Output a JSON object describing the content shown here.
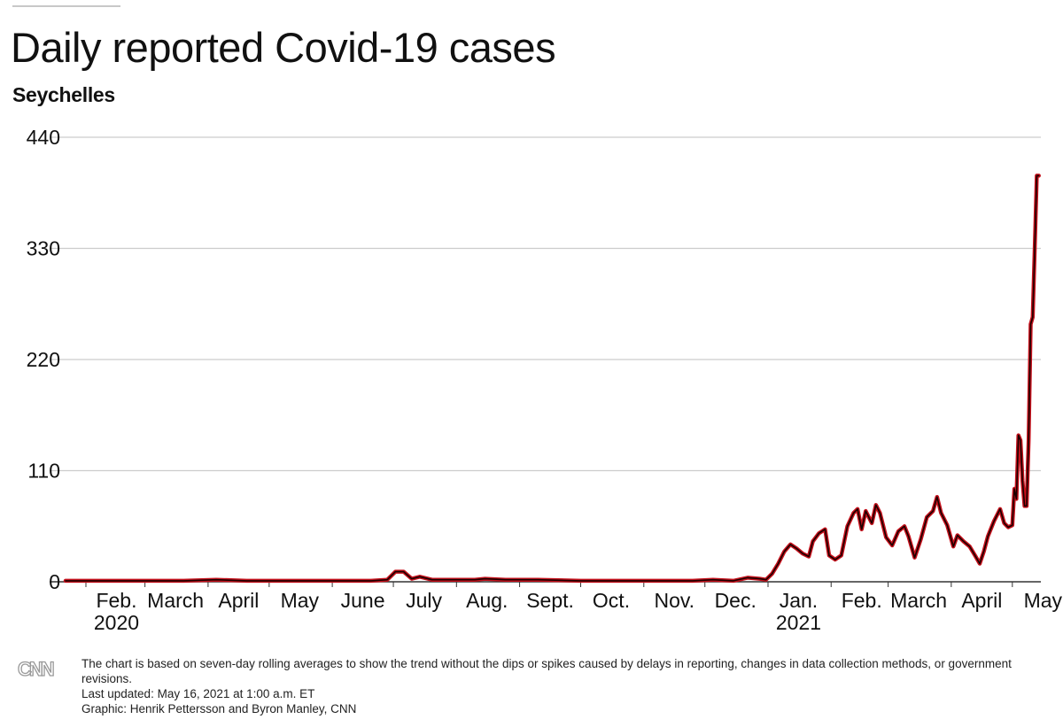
{
  "title": "Daily reported Covid-19 cases",
  "subtitle": "Seychelles",
  "footer": {
    "note": "The chart is based on seven-day rolling averages to show the trend without the dips or spikes caused by delays in reporting, changes in data collection methods, or government revisions.",
    "updated": "Last updated: May 16, 2021 at 1:00 a.m. ET",
    "credit": "Graphic: Henrik Pettersson and Byron Manley, CNN",
    "logo": "CNN"
  },
  "colors": {
    "line": "#c4101b",
    "line_core": "#1a0000",
    "grid": "#cccccc",
    "axis": "#333333"
  },
  "chart_data": {
    "type": "line",
    "title": "Daily reported Covid-19 cases",
    "subtitle": "Seychelles",
    "xlabel": "",
    "ylabel": "",
    "x_range": [
      "2020-01-22",
      "2021-05-15"
    ],
    "ylim": [
      0,
      440
    ],
    "yticks": [
      0,
      110,
      220,
      330,
      440
    ],
    "grid": true,
    "x_ticks": [
      {
        "date": "2020-02-01",
        "label": "Feb.",
        "sub": "2020"
      },
      {
        "date": "2020-03-01",
        "label": "March",
        "sub": ""
      },
      {
        "date": "2020-04-01",
        "label": "April",
        "sub": ""
      },
      {
        "date": "2020-05-01",
        "label": "May",
        "sub": ""
      },
      {
        "date": "2020-06-01",
        "label": "June",
        "sub": ""
      },
      {
        "date": "2020-07-01",
        "label": "July",
        "sub": ""
      },
      {
        "date": "2020-08-01",
        "label": "Aug.",
        "sub": ""
      },
      {
        "date": "2020-09-01",
        "label": "Sept.",
        "sub": ""
      },
      {
        "date": "2020-10-01",
        "label": "Oct.",
        "sub": ""
      },
      {
        "date": "2020-11-01",
        "label": "Nov.",
        "sub": ""
      },
      {
        "date": "2020-12-01",
        "label": "Dec.",
        "sub": ""
      },
      {
        "date": "2021-01-01",
        "label": "Jan.",
        "sub": "2021"
      },
      {
        "date": "2021-02-01",
        "label": "Feb.",
        "sub": ""
      },
      {
        "date": "2021-03-01",
        "label": "March",
        "sub": ""
      },
      {
        "date": "2021-04-01",
        "label": "April",
        "sub": ""
      },
      {
        "date": "2021-05-01",
        "label": "May",
        "sub": ""
      }
    ],
    "series": [
      {
        "points": [
          [
            "2020-01-22",
            1
          ],
          [
            "2020-03-20",
            1
          ],
          [
            "2020-04-05",
            2
          ],
          [
            "2020-04-20",
            1
          ],
          [
            "2020-06-20",
            1
          ],
          [
            "2020-06-28",
            2
          ],
          [
            "2020-07-02",
            10
          ],
          [
            "2020-07-06",
            10
          ],
          [
            "2020-07-10",
            3
          ],
          [
            "2020-07-14",
            5
          ],
          [
            "2020-07-20",
            2
          ],
          [
            "2020-08-10",
            2
          ],
          [
            "2020-08-15",
            3
          ],
          [
            "2020-08-25",
            2
          ],
          [
            "2020-09-10",
            2
          ],
          [
            "2020-10-01",
            1
          ],
          [
            "2020-11-01",
            1
          ],
          [
            "2020-11-25",
            1
          ],
          [
            "2020-12-05",
            2
          ],
          [
            "2020-12-15",
            1
          ],
          [
            "2020-12-22",
            4
          ],
          [
            "2020-12-28",
            3
          ],
          [
            "2020-12-31",
            2
          ],
          [
            "2021-01-03",
            8
          ],
          [
            "2021-01-06",
            18
          ],
          [
            "2021-01-09",
            30
          ],
          [
            "2021-01-12",
            37
          ],
          [
            "2021-01-15",
            33
          ],
          [
            "2021-01-18",
            28
          ],
          [
            "2021-01-21",
            25
          ],
          [
            "2021-01-23",
            40
          ],
          [
            "2021-01-26",
            48
          ],
          [
            "2021-01-29",
            52
          ],
          [
            "2021-01-31",
            26
          ],
          [
            "2021-02-03",
            22
          ],
          [
            "2021-02-06",
            26
          ],
          [
            "2021-02-09",
            55
          ],
          [
            "2021-02-12",
            68
          ],
          [
            "2021-02-14",
            72
          ],
          [
            "2021-02-16",
            52
          ],
          [
            "2021-02-18",
            70
          ],
          [
            "2021-02-21",
            58
          ],
          [
            "2021-02-23",
            76
          ],
          [
            "2021-02-25",
            68
          ],
          [
            "2021-02-28",
            44
          ],
          [
            "2021-03-03",
            36
          ],
          [
            "2021-03-06",
            50
          ],
          [
            "2021-03-09",
            55
          ],
          [
            "2021-03-11",
            45
          ],
          [
            "2021-03-14",
            24
          ],
          [
            "2021-03-17",
            42
          ],
          [
            "2021-03-20",
            64
          ],
          [
            "2021-03-23",
            70
          ],
          [
            "2021-03-25",
            84
          ],
          [
            "2021-03-27",
            68
          ],
          [
            "2021-03-30",
            56
          ],
          [
            "2021-04-02",
            35
          ],
          [
            "2021-04-04",
            46
          ],
          [
            "2021-04-07",
            40
          ],
          [
            "2021-04-10",
            35
          ],
          [
            "2021-04-13",
            25
          ],
          [
            "2021-04-15",
            18
          ],
          [
            "2021-04-17",
            30
          ],
          [
            "2021-04-19",
            45
          ],
          [
            "2021-04-22",
            60
          ],
          [
            "2021-04-25",
            72
          ],
          [
            "2021-04-27",
            58
          ],
          [
            "2021-04-29",
            54
          ],
          [
            "2021-05-01",
            56
          ],
          [
            "2021-05-02",
            92
          ],
          [
            "2021-05-03",
            82
          ],
          [
            "2021-05-04",
            145
          ],
          [
            "2021-05-05",
            140
          ],
          [
            "2021-05-06",
            100
          ],
          [
            "2021-05-07",
            75
          ],
          [
            "2021-05-08",
            75
          ],
          [
            "2021-05-09",
            140
          ],
          [
            "2021-05-10",
            255
          ],
          [
            "2021-05-11",
            262
          ],
          [
            "2021-05-12",
            330
          ],
          [
            "2021-05-13",
            402
          ],
          [
            "2021-05-14",
            402
          ]
        ]
      }
    ]
  }
}
